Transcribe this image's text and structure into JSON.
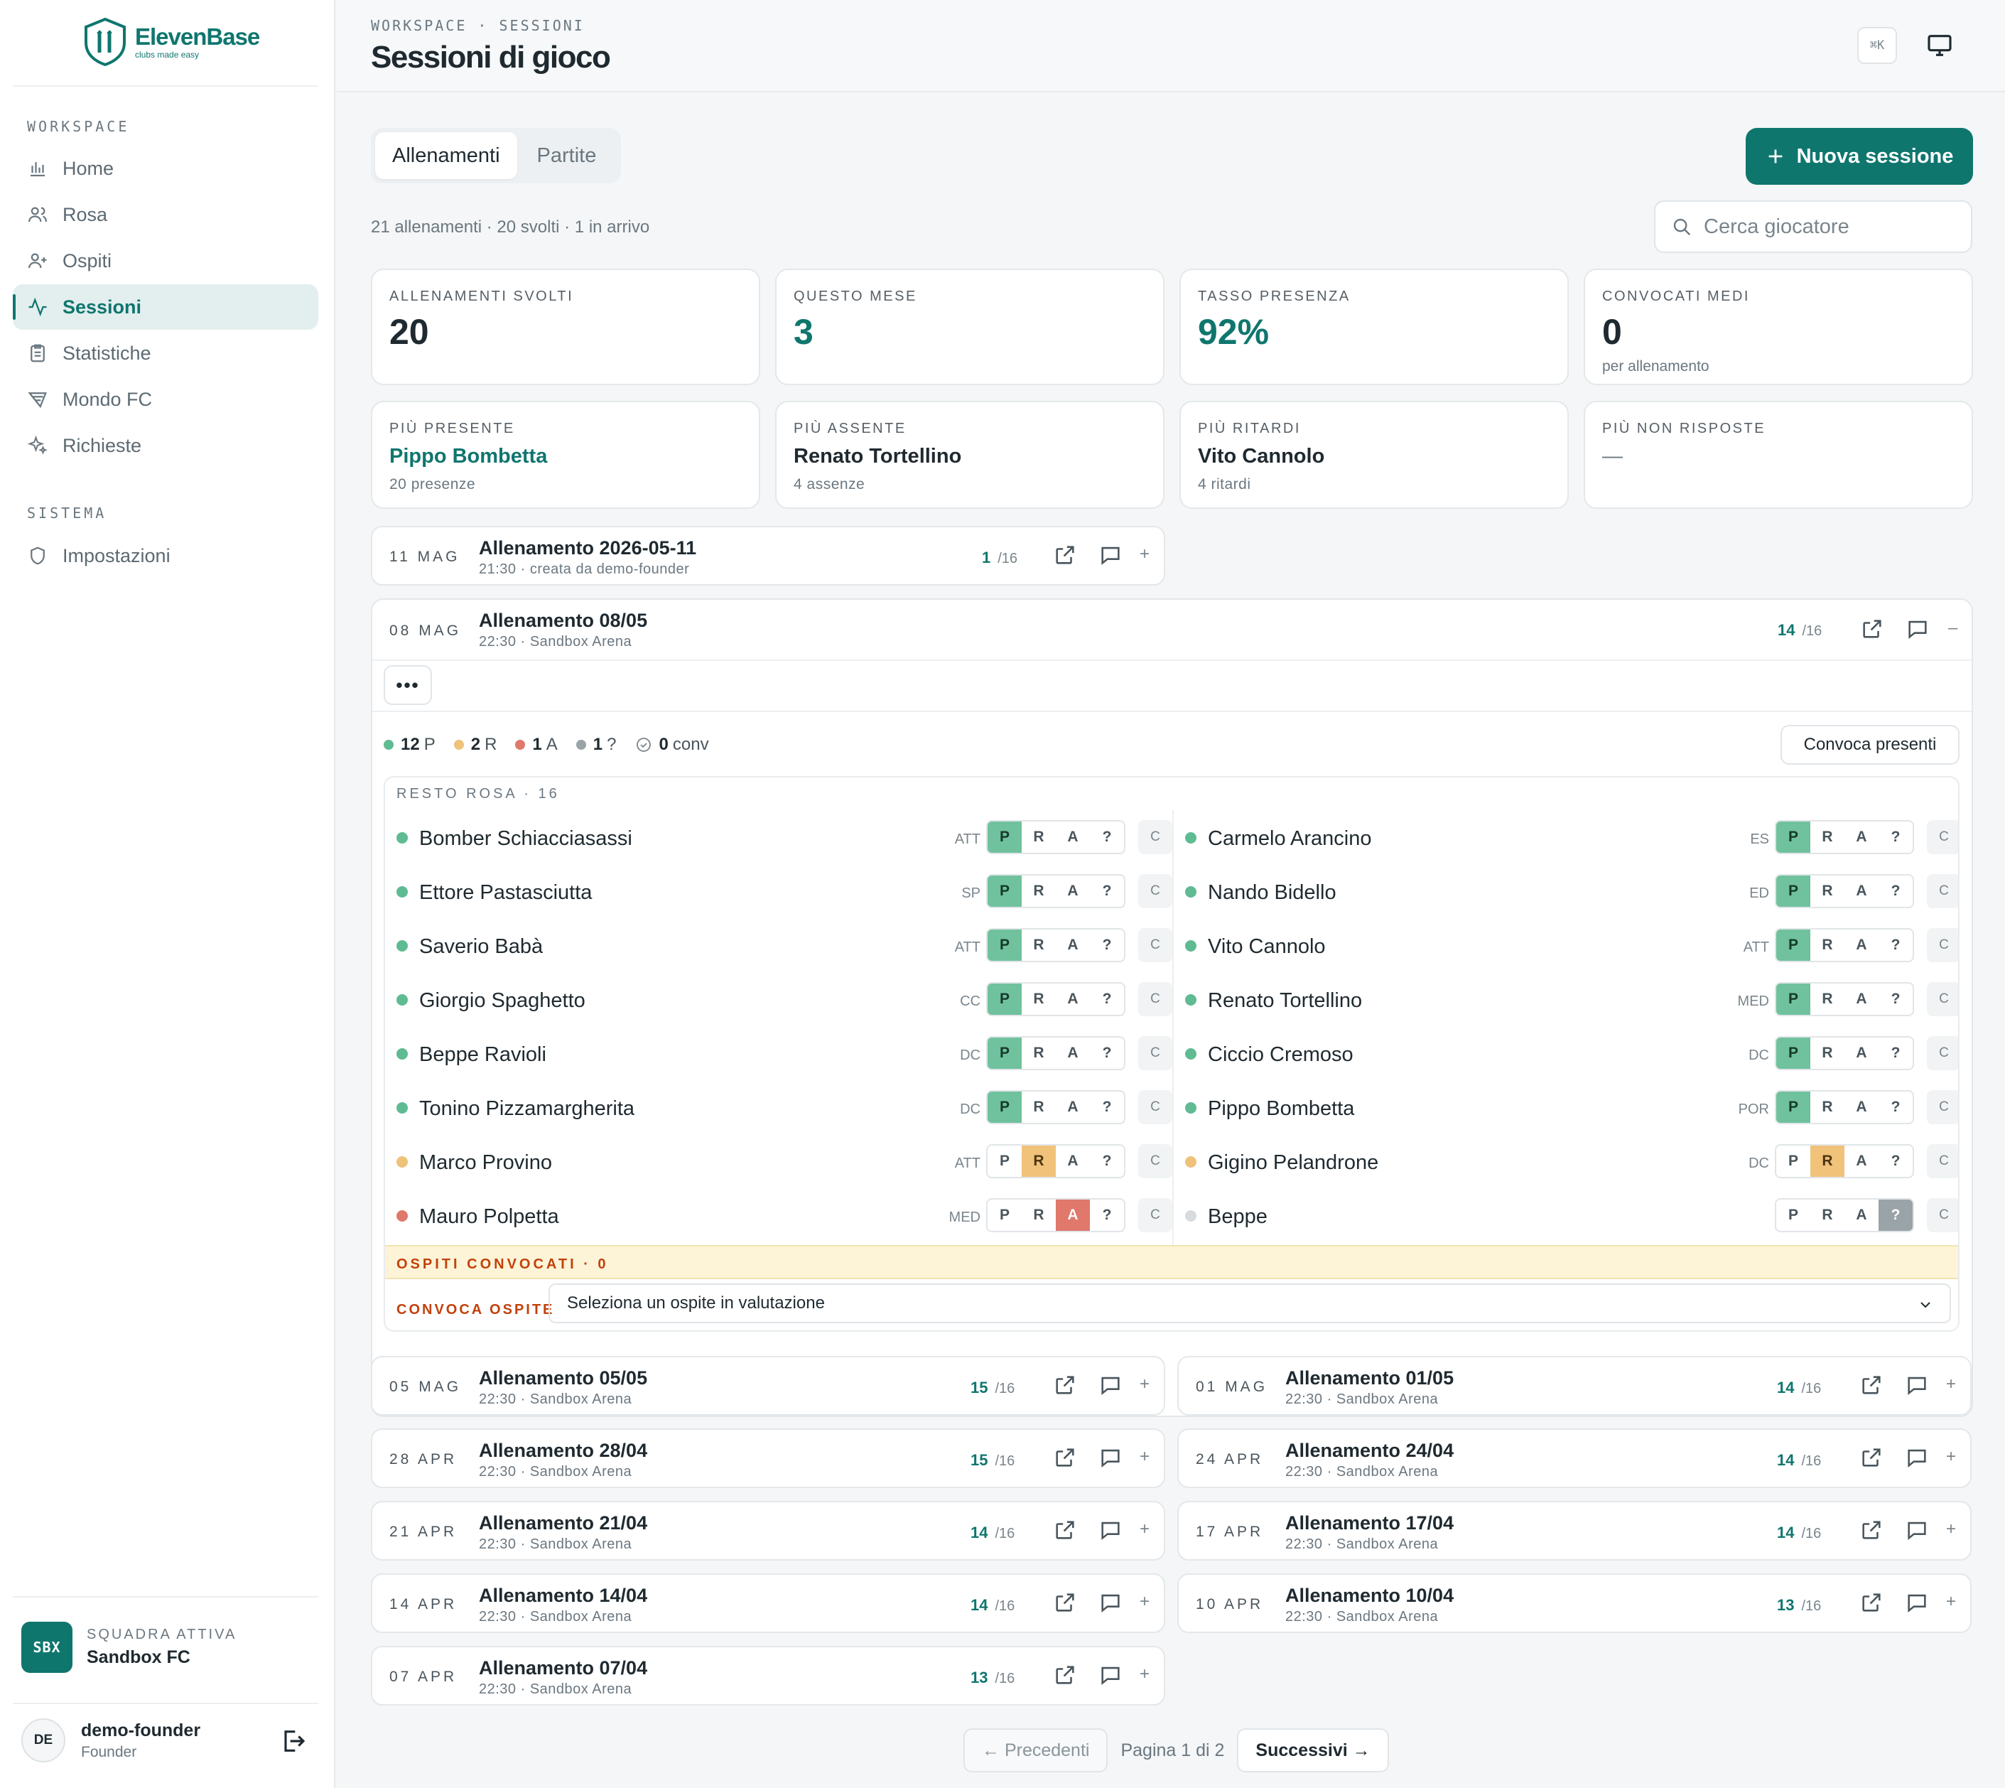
{
  "brand": {
    "name": "ElevenBase",
    "tagline": "clubs made easy"
  },
  "sidebar": {
    "workspace_label": "WORKSPACE",
    "items": [
      {
        "label": "Home",
        "icon": "bar-chart-icon"
      },
      {
        "label": "Rosa",
        "icon": "users-icon"
      },
      {
        "label": "Ospiti",
        "icon": "user-plus-icon"
      },
      {
        "label": "Sessioni",
        "icon": "activity-icon",
        "active": true
      },
      {
        "label": "Statistiche",
        "icon": "clipboard-icon"
      },
      {
        "label": "Mondo FC",
        "icon": "fc-icon"
      },
      {
        "label": "Richieste",
        "icon": "sparkles-icon"
      }
    ],
    "system_label": "SISTEMA",
    "system_items": [
      {
        "label": "Impostazioni",
        "icon": "shield-icon"
      }
    ],
    "team": {
      "label": "SQUADRA ATTIVA",
      "name": "Sandbox FC",
      "badge": "SBX"
    },
    "user": {
      "initials": "DE",
      "name": "demo-founder",
      "role": "Founder"
    }
  },
  "header": {
    "breadcrumb": "WORKSPACE · SESSIONI",
    "title": "Sessioni di gioco",
    "shortcut": "⌘K"
  },
  "tabs": [
    {
      "label": "Allenamenti",
      "active": true
    },
    {
      "label": "Partite"
    }
  ],
  "new_session_label": "Nuova sessione",
  "summary": "21 allenamenti · 20 svolti · 1 in arrivo",
  "search_placeholder": "Cerca giocatore",
  "kpis": [
    {
      "label": "ALLENAMENTI SVOLTI",
      "value": "20",
      "sub": ""
    },
    {
      "label": "QUESTO MESE",
      "value": "3",
      "sub": ""
    },
    {
      "label": "TASSO PRESENZA",
      "value": "92%",
      "sub": ""
    },
    {
      "label": "CONVOCATI MEDI",
      "value": "0",
      "sub": "per allenamento"
    }
  ],
  "highlights": [
    {
      "label": "PIÙ PRESENTE",
      "name": "Pippo Bombetta",
      "sub": "20 presenze"
    },
    {
      "label": "PIÙ ASSENTE",
      "name": "Renato Tortellino",
      "sub": "4 assenze"
    },
    {
      "label": "PIÙ RITARDI",
      "name": "Vito Cannolo",
      "sub": "4 ritardi"
    },
    {
      "label": "PIÙ NON RISPOSTE",
      "name": "—",
      "sub": ""
    }
  ],
  "upcoming": {
    "date": "11 MAG",
    "title": "Allenamento 2026-05-11",
    "meta": "21:30 · creata da demo-founder",
    "count": "1",
    "total": "/16",
    "toggle": "+"
  },
  "expanded": {
    "date": "08 MAG",
    "title": "Allenamento 08/05",
    "meta": "22:30 · Sandbox Arena",
    "count": "14",
    "total": "/16",
    "toggle": "–",
    "more": "•••",
    "stats": [
      {
        "value": "12",
        "letter": "P",
        "color": "#5fbb92"
      },
      {
        "value": "2",
        "letter": "R",
        "color": "#efc27a"
      },
      {
        "value": "1",
        "letter": "A",
        "color": "#e0786b"
      },
      {
        "value": "1",
        "letter": "?",
        "color": "#9aa3a8"
      }
    ],
    "conv": {
      "value": "0",
      "label": "conv"
    },
    "convoca_presenti": "Convoca presenti",
    "roster_label": "RESTO ROSA · 16",
    "options": [
      "P",
      "R",
      "A",
      "?"
    ],
    "c_label": "C",
    "left": [
      {
        "name": "Bomber Schiacciasassi",
        "pos": "ATT",
        "status": "P"
      },
      {
        "name": "Ettore Pastasciutta",
        "pos": "SP",
        "status": "P"
      },
      {
        "name": "Saverio Babà",
        "pos": "ATT",
        "status": "P"
      },
      {
        "name": "Giorgio Spaghetto",
        "pos": "CC",
        "status": "P"
      },
      {
        "name": "Beppe Ravioli",
        "pos": "DC",
        "status": "P"
      },
      {
        "name": "Tonino Pizzamargherita",
        "pos": "DC",
        "status": "P"
      },
      {
        "name": "Marco Provino",
        "pos": "ATT",
        "status": "R"
      },
      {
        "name": "Mauro Polpetta",
        "pos": "MED",
        "status": "A"
      }
    ],
    "right": [
      {
        "name": "Carmelo Arancino",
        "pos": "ES",
        "status": "P"
      },
      {
        "name": "Nando Bidello",
        "pos": "ED",
        "status": "P"
      },
      {
        "name": "Vito Cannolo",
        "pos": "ATT",
        "status": "P"
      },
      {
        "name": "Renato Tortellino",
        "pos": "MED",
        "status": "P"
      },
      {
        "name": "Ciccio Cremoso",
        "pos": "DC",
        "status": "P"
      },
      {
        "name": "Pippo Bombetta",
        "pos": "POR",
        "status": "P"
      },
      {
        "name": "Gigino Pelandrone",
        "pos": "DC",
        "status": "R"
      },
      {
        "name": "Beppe",
        "pos": "",
        "status": "?"
      }
    ],
    "guests_label": "OSPITI CONVOCATI · 0",
    "convoca_ospite_label": "CONVOCA OSPITE",
    "select_value": "Seleziona un ospite in valutazione"
  },
  "sessions": [
    {
      "date": "05 MAG",
      "title": "Allenamento 05/05",
      "meta": "22:30 · Sandbox Arena",
      "count": "15",
      "total": "/16"
    },
    {
      "date": "01 MAG",
      "title": "Allenamento 01/05",
      "meta": "22:30 · Sandbox Arena",
      "count": "14",
      "total": "/16"
    },
    {
      "date": "28 APR",
      "title": "Allenamento 28/04",
      "meta": "22:30 · Sandbox Arena",
      "count": "15",
      "total": "/16"
    },
    {
      "date": "24 APR",
      "title": "Allenamento 24/04",
      "meta": "22:30 · Sandbox Arena",
      "count": "14",
      "total": "/16"
    },
    {
      "date": "21 APR",
      "title": "Allenamento 21/04",
      "meta": "22:30 · Sandbox Arena",
      "count": "14",
      "total": "/16"
    },
    {
      "date": "17 APR",
      "title": "Allenamento 17/04",
      "meta": "22:30 · Sandbox Arena",
      "count": "14",
      "total": "/16"
    },
    {
      "date": "14 APR",
      "title": "Allenamento 14/04",
      "meta": "22:30 · Sandbox Arena",
      "count": "14",
      "total": "/16"
    },
    {
      "date": "10 APR",
      "title": "Allenamento 10/04",
      "meta": "22:30 · Sandbox Arena",
      "count": "13",
      "total": "/16"
    },
    {
      "date": "07 APR",
      "title": "Allenamento 07/04",
      "meta": "22:30 · Sandbox Arena",
      "count": "13",
      "total": "/16"
    }
  ],
  "row_toggle": "+",
  "pager": {
    "prev": "← Precedenti",
    "info": "Pagina 1 di 2",
    "next": "Successivi →"
  },
  "colors": {
    "accent": "#0f766e",
    "present": "#6fc29d",
    "late": "#f0c27a",
    "absent": "#e0786b",
    "unknown": "#9aa3a8",
    "warning": "#c2410c"
  }
}
